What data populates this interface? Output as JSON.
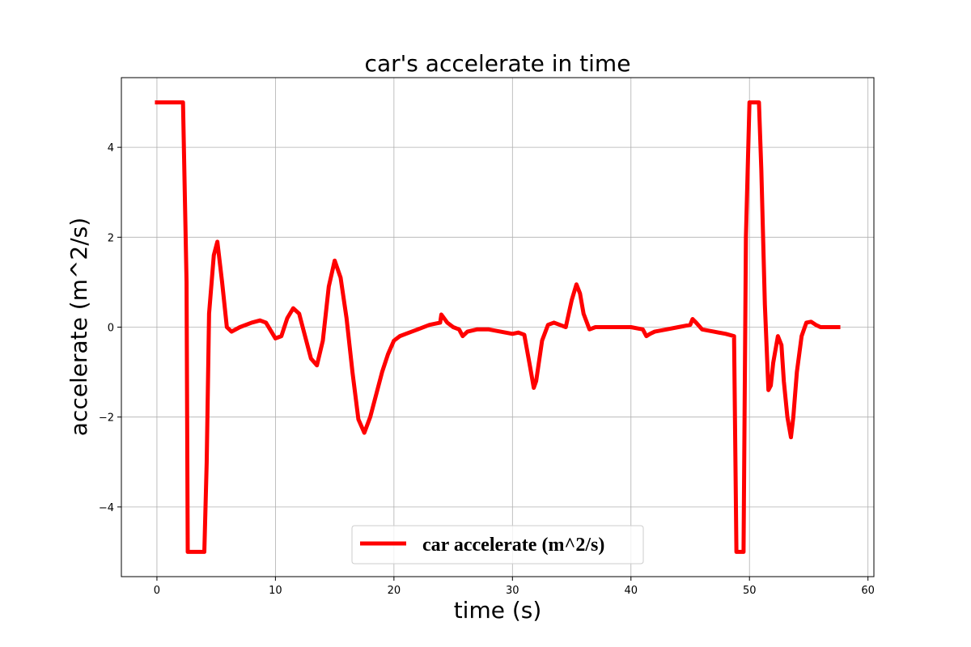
{
  "chart_data": {
    "type": "line",
    "title": "car's accelerate in time",
    "xlabel": "time (s)",
    "ylabel": "accelerate (m^2/s)",
    "xlim": [
      -3,
      60.5
    ],
    "ylim": [
      -5.55,
      5.55
    ],
    "xticks": [
      0,
      10,
      20,
      30,
      40,
      50,
      60
    ],
    "xtick_labels": [
      "0",
      "10",
      "20",
      "30",
      "40",
      "50",
      "60"
    ],
    "yticks": [
      -4,
      -2,
      0,
      2,
      4
    ],
    "ytick_labels": [
      "−4",
      "−2",
      "0",
      "2",
      "4"
    ],
    "grid": true,
    "legend_position": "bottom-center",
    "series": [
      {
        "name": "car accelerate (m^2/s)",
        "color": "#ff0000",
        "x": [
          0,
          2.2,
          2.5,
          2.6,
          4.0,
          4.2,
          4.4,
          4.8,
          5.1,
          5.5,
          5.9,
          6.3,
          7.0,
          8.0,
          8.7,
          9.2,
          10.0,
          10.5,
          11.0,
          11.5,
          12.0,
          12.5,
          13.0,
          13.5,
          14.0,
          14.5,
          15.0,
          15.5,
          16.0,
          16.5,
          17.0,
          17.5,
          18.0,
          18.5,
          19.0,
          19.5,
          20.0,
          20.5,
          21.0,
          22.0,
          23.0,
          23.9,
          24.0,
          24.5,
          25.0,
          25.5,
          25.8,
          26.2,
          27.0,
          28.0,
          29.0,
          30.0,
          30.5,
          31.0,
          31.5,
          31.8,
          32.0,
          32.5,
          33.0,
          33.5,
          34.0,
          34.5,
          35.0,
          35.4,
          35.7,
          36.0,
          36.5,
          37.0,
          38.0,
          39.0,
          40.0,
          41.0,
          41.3,
          41.6,
          42.0,
          43.0,
          44.0,
          45.0,
          45.2,
          45.5,
          46.0,
          47.0,
          48.0,
          48.7,
          48.9,
          49.5,
          49.7,
          50.0,
          50.2,
          50.5,
          50.8,
          51.0,
          51.3,
          51.6,
          51.8,
          52.0,
          52.4,
          52.7,
          52.9,
          53.2,
          53.5,
          53.7,
          54.0,
          54.4,
          54.8,
          55.2,
          55.6,
          56.0,
          56.5,
          57.0,
          57.5
        ],
        "y": [
          5.0,
          5.0,
          1.0,
          -5.0,
          -5.0,
          -3.0,
          0.3,
          1.6,
          1.9,
          1.0,
          0.0,
          -0.1,
          0.0,
          0.1,
          0.15,
          0.1,
          -0.25,
          -0.2,
          0.2,
          0.42,
          0.3,
          -0.2,
          -0.7,
          -0.85,
          -0.3,
          0.9,
          1.48,
          1.1,
          0.2,
          -1.0,
          -2.05,
          -2.35,
          -2.0,
          -1.5,
          -1.0,
          -0.6,
          -0.3,
          -0.2,
          -0.15,
          -0.05,
          0.05,
          0.1,
          0.28,
          0.1,
          0.0,
          -0.05,
          -0.2,
          -0.1,
          -0.05,
          -0.05,
          -0.1,
          -0.15,
          -0.12,
          -0.17,
          -0.9,
          -1.35,
          -1.2,
          -0.3,
          0.05,
          0.1,
          0.05,
          0.0,
          0.6,
          0.95,
          0.75,
          0.3,
          -0.05,
          0.0,
          0.0,
          0.0,
          0.0,
          -0.05,
          -0.2,
          -0.15,
          -0.1,
          -0.05,
          0.0,
          0.05,
          0.18,
          0.1,
          -0.05,
          -0.1,
          -0.15,
          -0.2,
          -5.0,
          -5.0,
          2.0,
          5.0,
          5.0,
          5.0,
          5.0,
          3.5,
          0.5,
          -1.4,
          -1.3,
          -0.8,
          -0.2,
          -0.4,
          -1.2,
          -2.0,
          -2.45,
          -2.0,
          -1.0,
          -0.2,
          0.1,
          0.12,
          0.05,
          0.0,
          0.0,
          0.0,
          0.0
        ]
      }
    ]
  }
}
